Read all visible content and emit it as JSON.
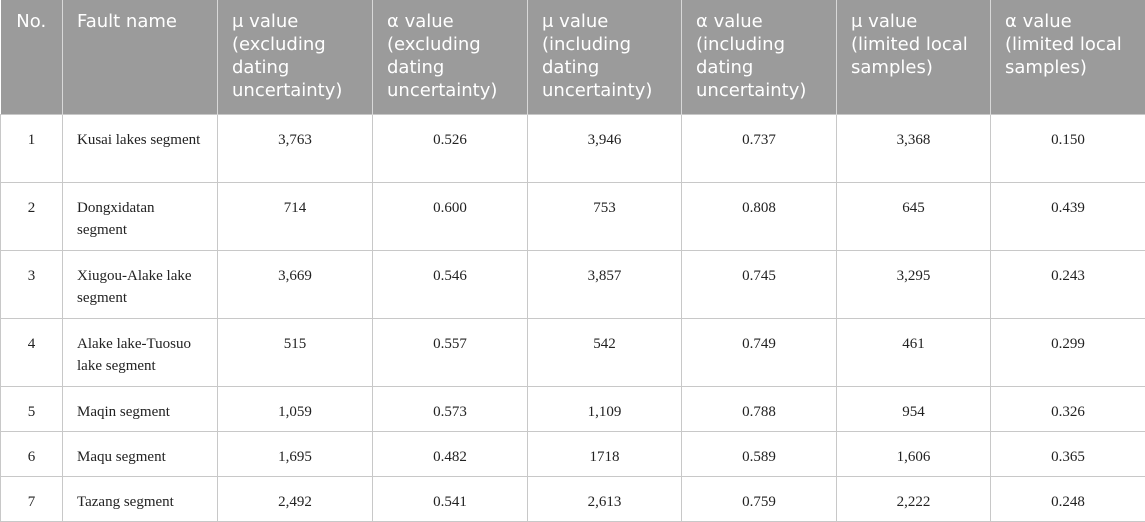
{
  "table": {
    "header": [
      "No.",
      "Fault name",
      "μ value (excluding dating uncertainty)",
      "α value (excluding dating uncertainty)",
      "μ value (including dating uncertainty)",
      "α value (including dating uncertainty)",
      "μ value (limited local samples)",
      "α value (limited local samples)"
    ],
    "rows": [
      [
        "1",
        "Kusai lakes segment",
        "3,763",
        "0.526",
        "3,946",
        "0.737",
        "3,368",
        "0.150"
      ],
      [
        "2",
        "Dongxidatan segment",
        "714",
        "0.600",
        "753",
        "0.808",
        "645",
        "0.439"
      ],
      [
        "3",
        "Xiugou-Alake lake segment",
        "3,669",
        "0.546",
        "3,857",
        "0.745",
        "3,295",
        "0.243"
      ],
      [
        "4",
        "Alake lake-Tuosuo lake segment",
        "515",
        "0.557",
        "542",
        "0.749",
        "461",
        "0.299"
      ],
      [
        "5",
        "Maqin segment",
        "1,059",
        "0.573",
        "1,109",
        "0.788",
        "954",
        "0.326"
      ],
      [
        "6",
        "Maqu segment",
        "1,695",
        "0.482",
        "1718",
        "0.589",
        "1,606",
        "0.365"
      ],
      [
        "7",
        "Tazang segment",
        "2,492",
        "0.541",
        "2,613",
        "0.759",
        "2,222",
        "0.248"
      ]
    ]
  }
}
